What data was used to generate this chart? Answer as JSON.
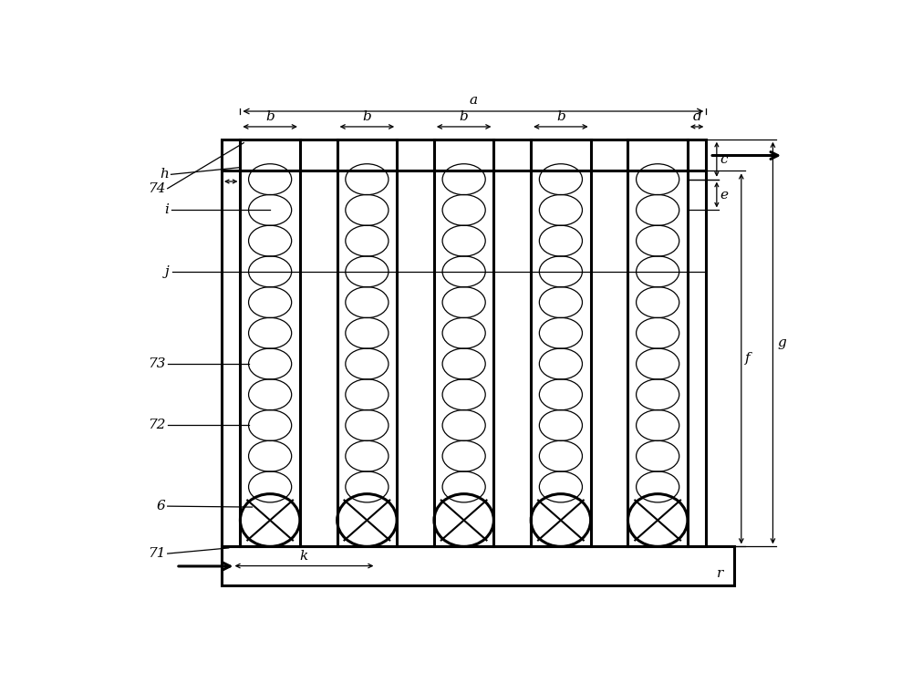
{
  "fig_width": 10.0,
  "fig_height": 7.6,
  "dpi": 100,
  "bg_color": "#ffffff",
  "line_color": "#000000",
  "num_columns": 5,
  "num_small_circles_per_col": 11,
  "labels": {
    "a": "a",
    "b": "b",
    "c": "c",
    "d": "d",
    "e": "e",
    "f": "f",
    "g": "g",
    "h": "h",
    "i": "i",
    "j": "j",
    "k": "k",
    "r": "r",
    "71": "71",
    "72": "72",
    "73": "73",
    "74": "74",
    "6": "6"
  },
  "lw_thick": 2.2,
  "lw_med": 1.5,
  "lw_thin": 0.9,
  "fontsize": 11
}
